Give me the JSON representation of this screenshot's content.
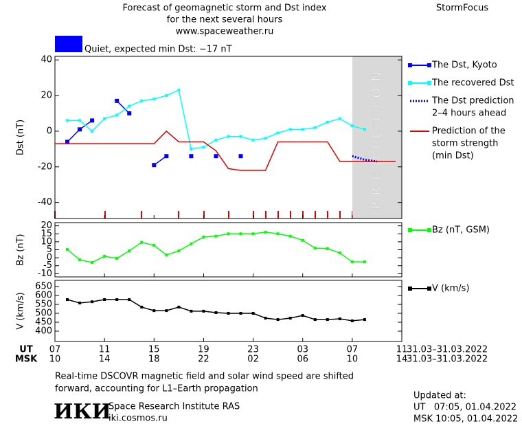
{
  "header": {
    "title_lines": [
      "Forecast of geomagnetic storm and Dst index",
      "for the next several hours",
      "www.spaceweather.ru"
    ],
    "brand": "StormFocus",
    "status": "Quiet, expected min Dst: −17 nT",
    "status_color": "#0000ff"
  },
  "time_axis": {
    "xlim": [
      0,
      28
    ],
    "ut_label": "UT",
    "msk_label": "MSK",
    "ut_ticks": [
      {
        "value": 0,
        "label": "07"
      },
      {
        "value": 4,
        "label": "11"
      },
      {
        "value": 8,
        "label": "15"
      },
      {
        "value": 12,
        "label": "19"
      },
      {
        "value": 16,
        "label": "23"
      },
      {
        "value": 20,
        "label": "03"
      },
      {
        "value": 24,
        "label": "07"
      },
      {
        "value": 28,
        "label": "11"
      }
    ],
    "msk_ticks": [
      {
        "value": 0,
        "label": "10"
      },
      {
        "value": 4,
        "label": "14"
      },
      {
        "value": 8,
        "label": "18"
      },
      {
        "value": 12,
        "label": "22"
      },
      {
        "value": 16,
        "label": "02"
      },
      {
        "value": 20,
        "label": "06"
      },
      {
        "value": 24,
        "label": "10"
      },
      {
        "value": 28,
        "label": "14"
      }
    ],
    "ut_range": "31.03–31.03.2022",
    "msk_range": "31.03–31.03.2022"
  },
  "chart_data": [
    {
      "type": "line",
      "ylabel": "Dst (nT)",
      "ylim": [
        -49,
        42
      ],
      "yticks": [
        40,
        20,
        0,
        -20,
        -40
      ],
      "prediction_start": 24,
      "prediction_label": "PREDICTION",
      "series": [
        {
          "name": [
            "The Dst, Kyoto"
          ],
          "color": "#0000ff",
          "marker": "square",
          "x": [
            1,
            2,
            3,
            4,
            5,
            6,
            7,
            8,
            9,
            10,
            11,
            12,
            13,
            14,
            15
          ],
          "values": [
            -6,
            1,
            6,
            null,
            17,
            10,
            null,
            -19,
            -14,
            null,
            -14,
            null,
            -14,
            null,
            -14
          ]
        },
        {
          "name": [
            "The recovered Dst"
          ],
          "color": "#00ffff",
          "marker": "dot",
          "x": [
            1,
            2,
            3,
            4,
            5,
            6,
            7,
            8,
            9,
            10,
            11,
            12,
            13,
            14,
            15,
            16,
            17,
            18,
            19,
            20,
            21,
            22,
            23,
            24,
            25
          ],
          "values": [
            6,
            6,
            0,
            7,
            9,
            14,
            17,
            18,
            20,
            23,
            -10,
            -9,
            -5,
            -3,
            -3,
            -5,
            -4,
            -1,
            1,
            1,
            2,
            5,
            7,
            3,
            1
          ]
        },
        {
          "name": [
            "The Dst prediction",
            "2–4 hours ahead"
          ],
          "color": "#0000ff",
          "dashed": true,
          "x": [
            24,
            25,
            26
          ],
          "values": [
            -14,
            -16,
            -17
          ]
        },
        {
          "name": [
            "Prediction of the",
            "storm strength",
            "(min Dst)"
          ],
          "color": "#e00000",
          "x": [
            0,
            8,
            9,
            10,
            12,
            13,
            14,
            15,
            17,
            18,
            22,
            23,
            27.5
          ],
          "values": [
            -7,
            -7,
            0,
            -6,
            -6,
            -11,
            -21,
            -22,
            -22,
            -6,
            -6,
            -17,
            -17
          ]
        }
      ]
    },
    {
      "type": "line",
      "ylabel": "Bz (nT)",
      "ylim": [
        -12,
        22
      ],
      "yticks": [
        20,
        15,
        10,
        5,
        0,
        -5,
        -10
      ],
      "series": [
        {
          "name": [
            "Bz (nT, GSM)"
          ],
          "color": "#00ff00",
          "marker": "dot",
          "x": [
            1,
            2,
            3,
            4,
            5,
            6,
            7,
            8,
            9,
            10,
            11,
            12,
            13,
            14,
            15,
            16,
            17,
            18,
            19,
            20,
            21,
            22,
            23,
            24,
            25
          ],
          "values": [
            5.2,
            -1.3,
            -3,
            0.9,
            -0.4,
            4.3,
            9.6,
            7.8,
            1.7,
            4.3,
            8.7,
            13,
            13.5,
            15,
            15,
            15,
            16,
            15,
            13.5,
            10.9,
            6,
            5.7,
            3,
            -2.6,
            -2.6
          ]
        }
      ]
    },
    {
      "type": "line",
      "ylabel": "V (km/s)",
      "ylim": [
        342,
        685
      ],
      "yticks": [
        650,
        600,
        550,
        500,
        450,
        400
      ],
      "series": [
        {
          "name": [
            "V (km/s)"
          ],
          "color": "#000000",
          "marker": "dot",
          "x": [
            1,
            2,
            3,
            4,
            5,
            6,
            7,
            8,
            9,
            10,
            11,
            12,
            13,
            14,
            15,
            16,
            17,
            18,
            19,
            20,
            21,
            22,
            23,
            24,
            25
          ],
          "values": [
            577,
            558,
            565,
            577,
            577,
            577,
            535,
            515,
            515,
            535,
            512,
            512,
            504,
            500,
            500,
            500,
            473,
            465,
            473,
            488,
            465,
            465,
            469,
            458,
            465
          ]
        }
      ]
    }
  ],
  "footer": {
    "note_lines": [
      "Real-time DSCOVR magnetic field and solar wind speed are shifted",
      "forward, accounting for L1–Earth propagation"
    ],
    "logo": "ИКИ",
    "institute": "Space Research Institute RAS",
    "site": "iki.cosmos.ru",
    "updated_label": "Updated at:",
    "updated_ut": "UT   07:05, 01.04.2022",
    "updated_msk": "MSK 10:05, 01.04.2022"
  }
}
